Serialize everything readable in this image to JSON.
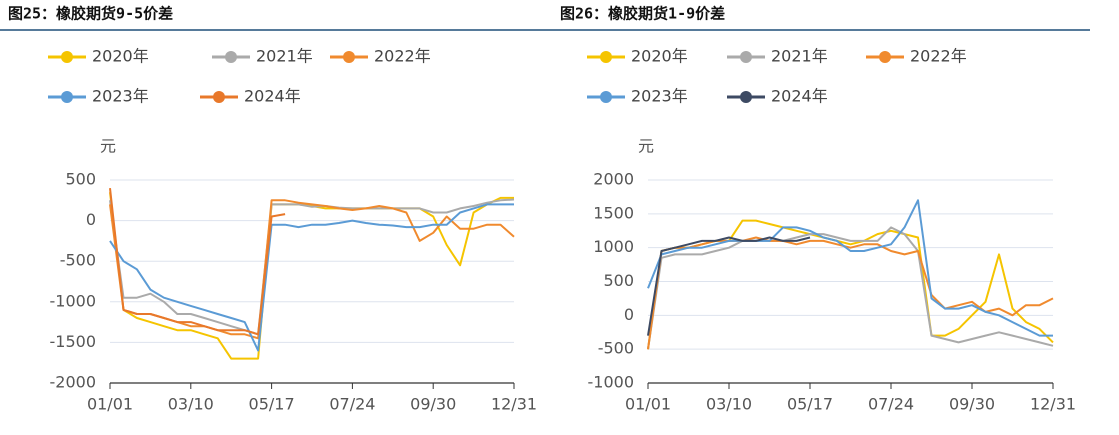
{
  "chart_data": [
    {
      "type": "line",
      "title": "图25：橡胶期货9-5价差",
      "y_label": "元",
      "categories": [
        "01/01",
        null,
        null,
        null,
        null,
        null,
        "03/10",
        null,
        null,
        null,
        null,
        null,
        "05/17",
        null,
        null,
        null,
        null,
        null,
        "07/24",
        null,
        null,
        null,
        null,
        null,
        "09/30",
        null,
        null,
        null,
        null,
        null,
        "12/31"
      ],
      "ylim": [
        -2000,
        500
      ],
      "yticks": [
        -2000,
        -1500,
        -1000,
        -500,
        0,
        500
      ],
      "grid": true,
      "series": [
        {
          "name": "2020年",
          "color": "#f5c400",
          "values": [
            350,
            -1100,
            -1200,
            -1250,
            -1300,
            -1350,
            -1350,
            -1400,
            -1450,
            -1700,
            -1700,
            -1700,
            200,
            200,
            200,
            180,
            150,
            150,
            150,
            150,
            150,
            150,
            150,
            150,
            50,
            -300,
            -550,
            100,
            200,
            280,
            280
          ]
        },
        {
          "name": "2021年",
          "color": "#aaaaaa",
          "values": [
            250,
            -950,
            -950,
            -900,
            -1000,
            -1150,
            -1150,
            -1200,
            -1250,
            -1300,
            -1350,
            -1400,
            200,
            200,
            200,
            170,
            180,
            160,
            150,
            150,
            150,
            150,
            150,
            150,
            100,
            100,
            150,
            180,
            220,
            250,
            260
          ]
        },
        {
          "name": "2022年",
          "color": "#f08a2e",
          "values": [
            200,
            -1100,
            -1150,
            -1150,
            -1200,
            -1250,
            -1300,
            -1300,
            -1350,
            -1400,
            -1400,
            -1450,
            250,
            250,
            220,
            200,
            180,
            150,
            130,
            150,
            180,
            150,
            100,
            -250,
            -150,
            50,
            -100,
            -100,
            -50,
            -50,
            -200
          ]
        },
        {
          "name": "2023年",
          "color": "#5b9bd5",
          "values": [
            -250,
            -500,
            -600,
            -850,
            -950,
            -1000,
            -1050,
            -1100,
            -1150,
            -1200,
            -1250,
            -1600,
            -50,
            -50,
            -80,
            -50,
            -50,
            -30,
            0,
            -30,
            -50,
            -60,
            -80,
            -80,
            -50,
            -50,
            100,
            150,
            200,
            200,
            200
          ]
        },
        {
          "name": "2024年",
          "color": "#e8782a",
          "values": [
            400,
            -1100,
            -1150,
            -1150,
            -1200,
            -1250,
            -1250,
            -1300,
            -1350,
            -1350,
            -1350,
            -1400,
            50,
            80,
            null,
            null,
            null,
            null,
            null,
            null,
            null,
            null,
            null,
            null,
            null,
            null,
            null,
            null,
            null,
            null,
            null
          ]
        }
      ]
    },
    {
      "type": "line",
      "title": "图26：橡胶期货1-9价差",
      "y_label": "元",
      "categories": [
        "01/01",
        null,
        null,
        null,
        null,
        null,
        "03/10",
        null,
        null,
        null,
        null,
        null,
        "05/17",
        null,
        null,
        null,
        null,
        null,
        "07/24",
        null,
        null,
        null,
        null,
        null,
        "09/30",
        null,
        null,
        null,
        null,
        null,
        "12/31"
      ],
      "ylim": [
        -1000,
        2000
      ],
      "yticks": [
        -1000,
        -500,
        0,
        500,
        1000,
        1500,
        2000
      ],
      "grid": true,
      "series": [
        {
          "name": "2020年",
          "color": "#f5c400",
          "values": [
            -500,
            950,
            1000,
            1000,
            1050,
            1100,
            1100,
            1400,
            1400,
            1350,
            1300,
            1250,
            1200,
            1150,
            1100,
            1050,
            1100,
            1200,
            1250,
            1200,
            1150,
            -300,
            -300,
            -200,
            0,
            200,
            900,
            100,
            -100,
            -200,
            -400
          ]
        },
        {
          "name": "2021年",
          "color": "#aaaaaa",
          "values": [
            -500,
            850,
            900,
            900,
            900,
            950,
            1000,
            1100,
            1100,
            1100,
            1100,
            1150,
            1200,
            1200,
            1150,
            1100,
            1100,
            1100,
            1300,
            1200,
            950,
            -300,
            -350,
            -400,
            -350,
            -300,
            -250,
            -300,
            -350,
            -400,
            -450
          ]
        },
        {
          "name": "2022年",
          "color": "#f08a2e",
          "values": [
            -500,
            950,
            1000,
            1000,
            1050,
            1100,
            1100,
            1100,
            1150,
            1100,
            1100,
            1050,
            1100,
            1100,
            1050,
            1000,
            1050,
            1050,
            950,
            900,
            950,
            300,
            100,
            150,
            200,
            50,
            100,
            0,
            150,
            150,
            250
          ]
        },
        {
          "name": "2023年",
          "color": "#5b9bd5",
          "values": [
            400,
            900,
            950,
            1000,
            1000,
            1050,
            1100,
            1100,
            1100,
            1100,
            1300,
            1300,
            1250,
            1150,
            1100,
            950,
            950,
            1000,
            1050,
            1300,
            1700,
            250,
            100,
            100,
            150,
            50,
            0,
            -100,
            -200,
            -300,
            -300
          ]
        },
        {
          "name": "2024年",
          "color": "#3d4a63",
          "values": [
            -300,
            950,
            1000,
            1050,
            1100,
            1100,
            1150,
            1100,
            1100,
            1150,
            1100,
            1100,
            1150,
            null,
            null,
            null,
            null,
            null,
            null,
            null,
            null,
            null,
            null,
            null,
            null,
            null,
            null,
            null,
            null,
            null,
            null
          ]
        }
      ]
    }
  ]
}
